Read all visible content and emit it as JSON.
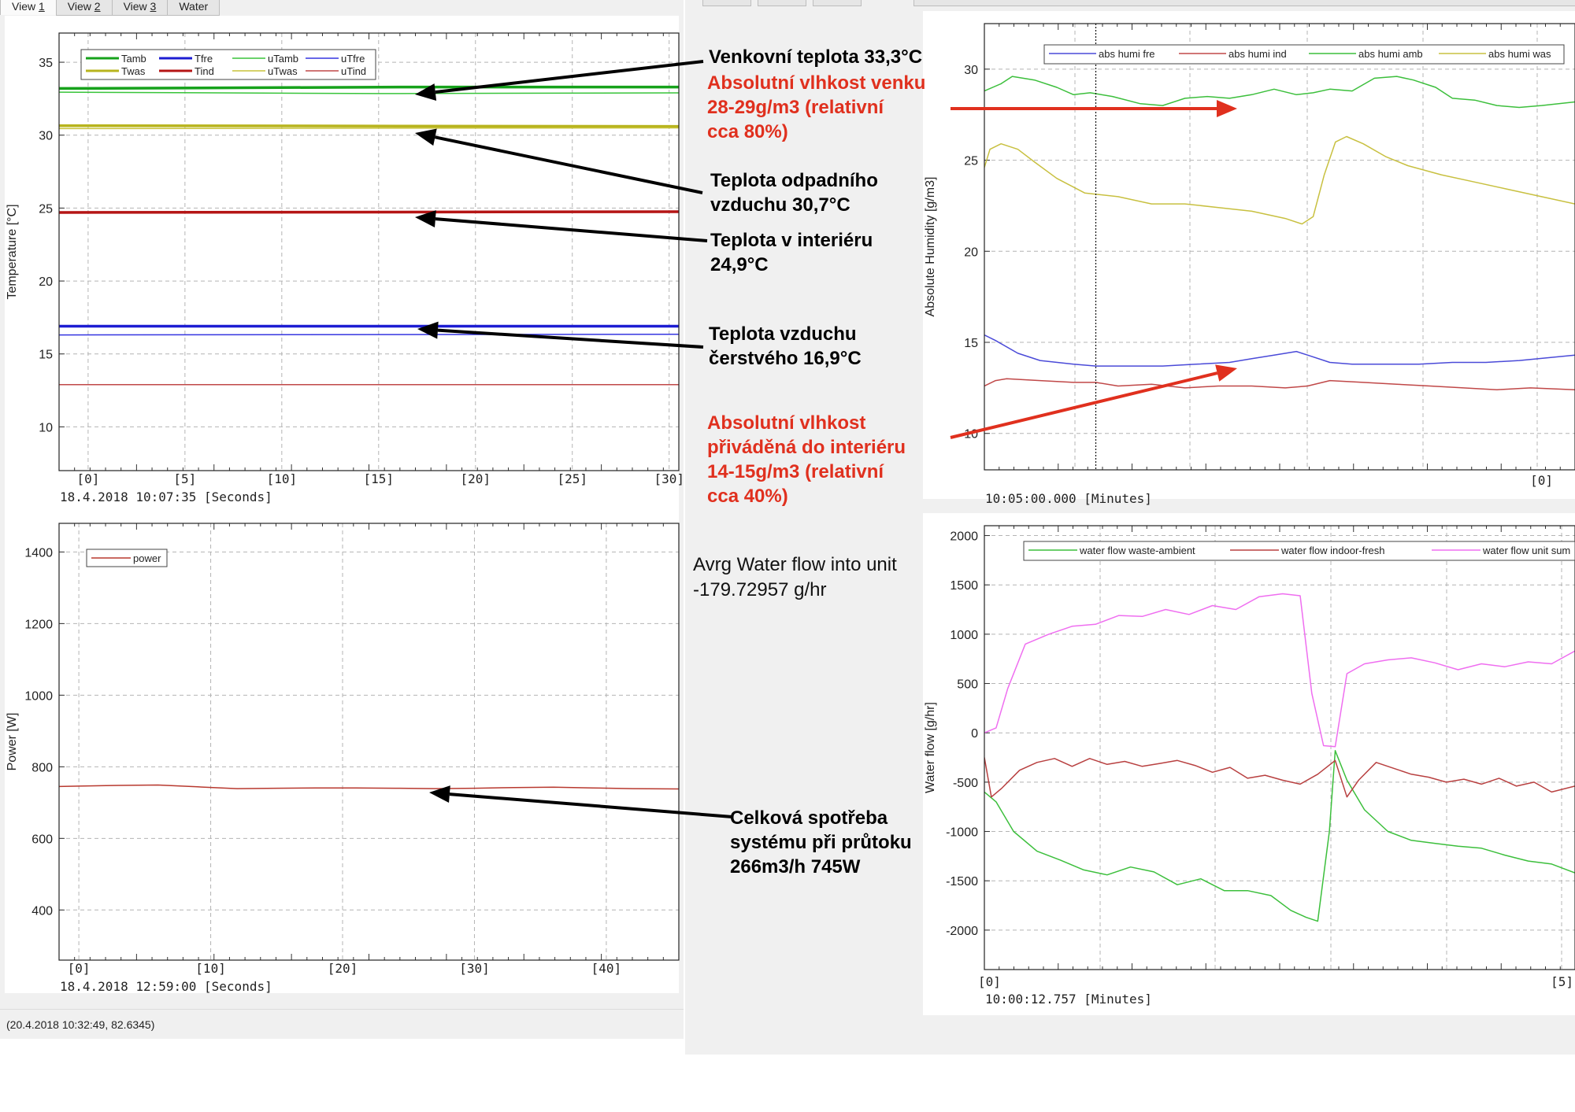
{
  "tabs": [
    {
      "prefix": "View ",
      "num": "1",
      "active": true
    },
    {
      "prefix": "View ",
      "num": "2",
      "active": false
    },
    {
      "prefix": "View ",
      "num": "3",
      "active": false
    },
    {
      "prefix": "Water",
      "num": "",
      "active": false
    }
  ],
  "status_text": "(20.4.2018 10:32:49, 82.6345)",
  "water_note": {
    "line1": "Avrg Water flow into unit",
    "line2": "-179.72957 g/hr"
  },
  "annotations": {
    "tamb": {
      "lines": [
        "Venkovní teplota 33,3°C"
      ]
    },
    "abs_out": {
      "lines": [
        "Absolutní vlhkost venku",
        "28-29g/m3 (relativní",
        "cca 80%)"
      ]
    },
    "twas": {
      "lines": [
        "Teplota odpadního",
        "vzduchu 30,7°C"
      ]
    },
    "tind": {
      "lines": [
        "Teplota v interiéru",
        "24,9°C"
      ]
    },
    "tfre": {
      "lines": [
        "Teplota vzduchu",
        "čerstvého 16,9°C"
      ]
    },
    "abs_in": {
      "lines": [
        "Absolutní vlhkost",
        "přiváděná do interiéru",
        "14-15g/m3 (relativní",
        "cca 40%)"
      ]
    },
    "power": {
      "lines": [
        "Celková spotřeba",
        "systému při průtoku",
        "266m3/h 745W"
      ]
    }
  },
  "colors": {
    "black_arrow": "#000000",
    "red_arrow": "#e0301e"
  },
  "chart_data": [
    {
      "id": "temperature",
      "type": "line",
      "ylabel": "Temperature [°C]",
      "xlabel": "18.4.2018 10:07:35 [Seconds]",
      "xlim": [
        -1.5,
        30.5
      ],
      "ylim": [
        7,
        37
      ],
      "yticks": [
        10,
        15,
        20,
        25,
        30,
        35
      ],
      "xticks": [
        0,
        5,
        10,
        15,
        20,
        25,
        30
      ],
      "grid": true,
      "legend": {
        "placement": "top-left",
        "columns": 4
      },
      "series": [
        {
          "name": "Tamb",
          "color": "#16a21b",
          "width": 3.5,
          "x": [
            -1.5,
            17,
            30.5
          ],
          "y": [
            33.2,
            33.3,
            33.3
          ]
        },
        {
          "name": "Tfre",
          "color": "#1d1dd2",
          "width": 3.5,
          "x": [
            -1.5,
            30.5
          ],
          "y": [
            16.9,
            16.9
          ]
        },
        {
          "name": "uTamb",
          "color": "#38c43a",
          "width": 1.5,
          "x": [
            -1.5,
            15,
            30.5
          ],
          "y": [
            32.95,
            32.85,
            32.9
          ]
        },
        {
          "name": "uTfre",
          "color": "#3535e0",
          "width": 1.5,
          "x": [
            -1.5,
            30.5
          ],
          "y": [
            16.3,
            16.35
          ]
        },
        {
          "name": "Twas",
          "color": "#b8b41e",
          "width": 3.5,
          "x": [
            -1.5,
            30.5
          ],
          "y": [
            30.65,
            30.6
          ]
        },
        {
          "name": "Tind",
          "color": "#b51515",
          "width": 3.5,
          "x": [
            -1.5,
            30.5
          ],
          "y": [
            24.7,
            24.75
          ]
        },
        {
          "name": "uTwas",
          "color": "#c8c33a",
          "width": 1.5,
          "x": [
            -1.5,
            30.5
          ],
          "y": [
            30.45,
            30.5
          ]
        },
        {
          "name": "uTind",
          "color": "#c04848",
          "width": 1.5,
          "x": [
            -1.5,
            30.5
          ],
          "y": [
            12.9,
            12.9
          ]
        }
      ]
    },
    {
      "id": "power",
      "type": "line",
      "ylabel": "Power [W]",
      "xlabel": "18.4.2018 12:59:00 [Seconds]",
      "xlim": [
        -1.5,
        45.5
      ],
      "ylim": [
        260,
        1480
      ],
      "yticks": [
        400,
        600,
        800,
        1000,
        1200,
        1400
      ],
      "xticks": [
        0,
        10,
        20,
        30,
        40
      ],
      "grid": true,
      "legend": {
        "placement": "top-left",
        "columns": 1
      },
      "series": [
        {
          "name": "power",
          "color": "#b8392f",
          "width": 1.5,
          "x": [
            -1.5,
            0,
            3,
            6,
            9,
            12,
            15,
            18,
            21,
            24,
            27,
            30,
            33,
            36,
            39,
            42,
            45.5
          ],
          "y": [
            745,
            746,
            748,
            749,
            744,
            739,
            740,
            741,
            741,
            740,
            739,
            740,
            742,
            743,
            741,
            739,
            738
          ]
        }
      ]
    },
    {
      "id": "humidity",
      "type": "line",
      "ylabel": "Absolute Humidity [g/m3]",
      "xlabel": "10:05:00.000 [Minutes]",
      "xlim": [
        -5,
        0.3
      ],
      "ylim": [
        8,
        32.5
      ],
      "yticks": [
        10,
        15,
        20,
        25,
        30
      ],
      "xticks": [
        0
      ],
      "grid": true,
      "cursor_x": -4.0,
      "legend": {
        "placement": "top",
        "columns": 4
      },
      "series": [
        {
          "name": "abs humi fre",
          "color": "#4a4ad8",
          "width": 1.5,
          "x": [
            -5,
            -4.9,
            -4.7,
            -4.5,
            -4.2,
            -4.0,
            -3.7,
            -3.4,
            -3.1,
            -2.8,
            -2.6,
            -2.4,
            -2.2,
            -2.1,
            -1.9,
            -1.7,
            -1.4,
            -1.1,
            -0.8,
            -0.5,
            -0.2,
            0.3
          ],
          "y": [
            15.4,
            15.1,
            14.4,
            14.0,
            13.8,
            13.7,
            13.7,
            13.7,
            13.8,
            13.9,
            14.1,
            14.3,
            14.5,
            14.3,
            13.9,
            13.8,
            13.8,
            13.8,
            13.9,
            13.9,
            14.0,
            14.3
          ]
        },
        {
          "name": "abs humi ind",
          "color": "#c04848",
          "width": 1.5,
          "x": [
            -5,
            -4.9,
            -4.8,
            -4.5,
            -4.2,
            -4.0,
            -3.8,
            -3.5,
            -3.2,
            -2.9,
            -2.6,
            -2.3,
            -2.1,
            -1.9,
            -1.6,
            -1.3,
            -1.0,
            -0.7,
            -0.4,
            -0.1,
            0.3
          ],
          "y": [
            12.6,
            12.9,
            13.0,
            12.9,
            12.8,
            12.8,
            12.6,
            12.7,
            12.5,
            12.6,
            12.6,
            12.5,
            12.6,
            12.9,
            12.8,
            12.7,
            12.6,
            12.5,
            12.4,
            12.5,
            12.4
          ]
        },
        {
          "name": "abs humi amb",
          "color": "#3cbf3c",
          "width": 1.5,
          "x": [
            -5,
            -4.85,
            -4.75,
            -4.55,
            -4.35,
            -4.2,
            -4.05,
            -3.85,
            -3.6,
            -3.4,
            -3.2,
            -3.0,
            -2.8,
            -2.6,
            -2.4,
            -2.2,
            -2.05,
            -1.9,
            -1.7,
            -1.5,
            -1.3,
            -1.15,
            -0.95,
            -0.8,
            -0.6,
            -0.4,
            -0.2,
            0,
            0.3
          ],
          "y": [
            28.8,
            29.2,
            29.6,
            29.4,
            29.0,
            28.6,
            28.7,
            28.5,
            28.1,
            28.0,
            28.4,
            28.5,
            28.4,
            28.6,
            28.9,
            28.6,
            28.7,
            28.9,
            28.8,
            29.5,
            29.6,
            29.4,
            29.0,
            28.4,
            28.3,
            28.0,
            27.9,
            28.0,
            28.2
          ]
        },
        {
          "name": "abs humi was",
          "color": "#c8c040",
          "width": 1.5,
          "x": [
            -5,
            -4.95,
            -4.85,
            -4.7,
            -4.55,
            -4.35,
            -4.1,
            -3.8,
            -3.5,
            -3.2,
            -2.9,
            -2.6,
            -2.3,
            -2.15,
            -2.05,
            -1.95,
            -1.85,
            -1.75,
            -1.6,
            -1.4,
            -1.2,
            -0.9,
            -0.6,
            -0.3,
            0,
            0.3
          ],
          "y": [
            24.6,
            25.6,
            25.9,
            25.6,
            24.9,
            24.0,
            23.2,
            23.0,
            22.6,
            22.6,
            22.4,
            22.2,
            21.8,
            21.5,
            21.9,
            24.2,
            26.0,
            26.3,
            25.9,
            25.2,
            24.7,
            24.2,
            23.8,
            23.4,
            23.0,
            22.6
          ]
        }
      ]
    },
    {
      "id": "waterflow",
      "type": "line",
      "ylabel": "Water flow [g/hr]",
      "xlabel": "10:00:12.757 [Minutes]",
      "xlim": [
        0,
        5.05
      ],
      "ylim": [
        -2400,
        2100
      ],
      "yticks": [
        -2000,
        -1500,
        -1000,
        -500,
        0,
        500,
        1000,
        1500,
        2000
      ],
      "xticks": [
        0,
        5
      ],
      "grid": true,
      "legend": {
        "placement": "top",
        "columns": 3
      },
      "series": [
        {
          "name": "water flow waste-ambient",
          "color": "#3cbf3c",
          "width": 1.5,
          "x": [
            0,
            0.1,
            0.25,
            0.45,
            0.65,
            0.85,
            1.05,
            1.25,
            1.45,
            1.65,
            1.85,
            2.05,
            2.25,
            2.45,
            2.62,
            2.75,
            2.85,
            2.95,
            3.0,
            3.1,
            3.25,
            3.45,
            3.65,
            3.85,
            4.05,
            4.25,
            4.45,
            4.65,
            4.85,
            5.05
          ],
          "y": [
            -600,
            -700,
            -1000,
            -1200,
            -1290,
            -1390,
            -1440,
            -1360,
            -1410,
            -1540,
            -1480,
            -1600,
            -1600,
            -1650,
            -1800,
            -1870,
            -1910,
            -1000,
            -180,
            -480,
            -780,
            -1000,
            -1090,
            -1120,
            -1150,
            -1170,
            -1240,
            -1300,
            -1330,
            -1420
          ]
        },
        {
          "name": "water flow indoor-fresh",
          "color": "#b84040",
          "width": 1.5,
          "x": [
            0,
            0.06,
            0.15,
            0.3,
            0.45,
            0.6,
            0.75,
            0.9,
            1.05,
            1.2,
            1.35,
            1.5,
            1.65,
            1.8,
            1.95,
            2.1,
            2.25,
            2.4,
            2.55,
            2.7,
            2.85,
            3.0,
            3.1,
            3.2,
            3.35,
            3.5,
            3.65,
            3.8,
            3.95,
            4.1,
            4.25,
            4.4,
            4.55,
            4.7,
            4.85,
            5.05
          ],
          "y": [
            -250,
            -650,
            -560,
            -380,
            -300,
            -260,
            -340,
            -260,
            -320,
            -290,
            -340,
            -310,
            -280,
            -330,
            -400,
            -350,
            -460,
            -430,
            -480,
            -520,
            -420,
            -280,
            -650,
            -480,
            -300,
            -360,
            -420,
            -450,
            -500,
            -470,
            -520,
            -460,
            -540,
            -500,
            -600,
            -540
          ]
        },
        {
          "name": "water flow unit sum",
          "color": "#ef6ef0",
          "width": 1.5,
          "x": [
            0,
            0.1,
            0.2,
            0.35,
            0.55,
            0.75,
            0.95,
            1.15,
            1.35,
            1.55,
            1.75,
            1.95,
            2.15,
            2.35,
            2.55,
            2.7,
            2.8,
            2.9,
            3.0,
            3.1,
            3.25,
            3.45,
            3.65,
            3.85,
            4.05,
            4.25,
            4.45,
            4.65,
            4.85,
            5.05
          ],
          "y": [
            0,
            50,
            450,
            900,
            1000,
            1080,
            1100,
            1190,
            1180,
            1250,
            1200,
            1290,
            1250,
            1380,
            1410,
            1390,
            400,
            -130,
            -140,
            600,
            700,
            740,
            760,
            710,
            640,
            700,
            670,
            720,
            700,
            830
          ]
        }
      ]
    }
  ]
}
